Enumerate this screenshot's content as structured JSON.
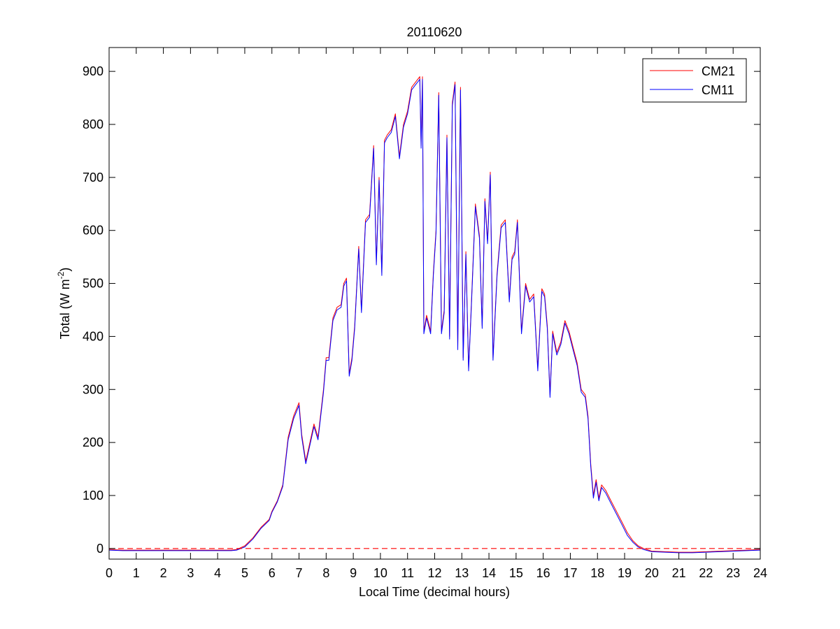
{
  "chart_data": {
    "type": "line",
    "title": "20110620",
    "xlabel": "Local Time (decimal hours)",
    "ylabel": {
      "base": "Total (W m",
      "superscript": "-2",
      "close": ")"
    },
    "xlim": [
      0,
      24
    ],
    "ylim": [
      -20,
      945
    ],
    "xticks": [
      0,
      1,
      2,
      3,
      4,
      5,
      6,
      7,
      8,
      9,
      10,
      11,
      12,
      13,
      14,
      15,
      16,
      17,
      18,
      19,
      20,
      21,
      22,
      23,
      24
    ],
    "yticks": [
      0,
      100,
      200,
      300,
      400,
      500,
      600,
      700,
      800,
      900
    ],
    "grid": false,
    "legend_position": "top-right",
    "reference_line": {
      "y": 0,
      "style": "dashed",
      "color": "#ff0000"
    },
    "series": [
      {
        "name": "CM21",
        "color": "#ff0000",
        "x": [
          0,
          0.5,
          1,
          1.5,
          2,
          2.5,
          3,
          3.5,
          4,
          4.5,
          4.7,
          5,
          5.3,
          5.6,
          5.9,
          6,
          6.2,
          6.4,
          6.6,
          6.8,
          7,
          7.1,
          7.25,
          7.4,
          7.55,
          7.7,
          7.8,
          7.9,
          8,
          8.1,
          8.25,
          8.4,
          8.55,
          8.65,
          8.75,
          8.85,
          8.95,
          9.05,
          9.2,
          9.3,
          9.45,
          9.6,
          9.75,
          9.85,
          9.95,
          10.05,
          10.15,
          10.25,
          10.4,
          10.55,
          10.7,
          10.85,
          11,
          11.15,
          11.3,
          11.45,
          11.5,
          11.55,
          11.6,
          11.7,
          11.85,
          11.95,
          12.05,
          12.15,
          12.25,
          12.35,
          12.45,
          12.55,
          12.65,
          12.75,
          12.85,
          12.95,
          13.05,
          13.15,
          13.25,
          13.35,
          13.5,
          13.65,
          13.75,
          13.85,
          13.95,
          14.05,
          14.15,
          14.3,
          14.45,
          14.6,
          14.75,
          14.85,
          14.95,
          15.05,
          15.2,
          15.35,
          15.5,
          15.65,
          15.8,
          15.95,
          16.05,
          16.15,
          16.25,
          16.35,
          16.5,
          16.65,
          16.8,
          16.95,
          17.1,
          17.25,
          17.4,
          17.55,
          17.65,
          17.75,
          17.85,
          17.95,
          18.05,
          18.15,
          18.3,
          18.5,
          18.7,
          18.9,
          19.1,
          19.3,
          19.5,
          19.7,
          20,
          20.5,
          21,
          21.5,
          22,
          22.5,
          23,
          23.5,
          24
        ],
        "y": [
          -2,
          -3,
          -3,
          -3,
          -3,
          -3,
          -3,
          -3,
          -3,
          -3,
          -2,
          5,
          20,
          40,
          55,
          70,
          90,
          120,
          210,
          250,
          275,
          215,
          165,
          200,
          235,
          210,
          255,
          300,
          360,
          360,
          435,
          455,
          460,
          500,
          510,
          330,
          360,
          420,
          570,
          450,
          620,
          630,
          760,
          540,
          700,
          520,
          770,
          780,
          790,
          820,
          740,
          800,
          825,
          870,
          880,
          890,
          760,
          890,
          410,
          440,
          410,
          520,
          600,
          860,
          410,
          450,
          780,
          400,
          840,
          880,
          380,
          870,
          360,
          560,
          340,
          460,
          650,
          590,
          420,
          660,
          580,
          710,
          360,
          520,
          610,
          620,
          470,
          550,
          560,
          620,
          410,
          500,
          470,
          480,
          340,
          490,
          480,
          420,
          290,
          410,
          370,
          390,
          430,
          410,
          380,
          350,
          300,
          290,
          250,
          160,
          100,
          130,
          95,
          120,
          110,
          90,
          70,
          50,
          30,
          15,
          5,
          0,
          -5,
          -6,
          -7,
          -7,
          -6,
          -5,
          -4,
          -3,
          -2
        ]
      },
      {
        "name": "CM11",
        "color": "#0000ff",
        "x": [
          0,
          0.5,
          1,
          1.5,
          2,
          2.5,
          3,
          3.5,
          4,
          4.5,
          4.7,
          5,
          5.3,
          5.6,
          5.9,
          6,
          6.2,
          6.4,
          6.6,
          6.8,
          7,
          7.1,
          7.25,
          7.4,
          7.55,
          7.7,
          7.8,
          7.9,
          8,
          8.1,
          8.25,
          8.4,
          8.55,
          8.65,
          8.75,
          8.85,
          8.95,
          9.05,
          9.2,
          9.3,
          9.45,
          9.6,
          9.75,
          9.85,
          9.95,
          10.05,
          10.15,
          10.25,
          10.4,
          10.55,
          10.7,
          10.85,
          11,
          11.15,
          11.3,
          11.45,
          11.5,
          11.55,
          11.6,
          11.7,
          11.85,
          11.95,
          12.05,
          12.15,
          12.25,
          12.35,
          12.45,
          12.55,
          12.65,
          12.75,
          12.85,
          12.95,
          13.05,
          13.15,
          13.25,
          13.35,
          13.5,
          13.65,
          13.75,
          13.85,
          13.95,
          14.05,
          14.15,
          14.3,
          14.45,
          14.6,
          14.75,
          14.85,
          14.95,
          15.05,
          15.2,
          15.35,
          15.5,
          15.65,
          15.8,
          15.95,
          16.05,
          16.15,
          16.25,
          16.35,
          16.5,
          16.65,
          16.8,
          16.95,
          17.1,
          17.25,
          17.4,
          17.55,
          17.65,
          17.75,
          17.85,
          17.95,
          18.05,
          18.15,
          18.3,
          18.5,
          18.7,
          18.9,
          19.1,
          19.3,
          19.5,
          19.7,
          20,
          20.5,
          21,
          21.5,
          22,
          22.5,
          23,
          23.5,
          24
        ],
        "y": [
          -3,
          -4,
          -4,
          -4,
          -4,
          -4,
          -4,
          -4,
          -4,
          -4,
          -3,
          3,
          18,
          38,
          53,
          68,
          88,
          117,
          205,
          245,
          270,
          210,
          160,
          195,
          230,
          205,
          250,
          295,
          355,
          355,
          430,
          450,
          455,
          495,
          505,
          325,
          355,
          415,
          565,
          445,
          615,
          625,
          755,
          535,
          695,
          515,
          765,
          775,
          785,
          815,
          735,
          795,
          820,
          865,
          875,
          885,
          755,
          885,
          405,
          435,
          405,
          515,
          595,
          855,
          405,
          445,
          775,
          395,
          835,
          875,
          375,
          865,
          355,
          555,
          335,
          455,
          645,
          585,
          415,
          655,
          575,
          705,
          355,
          515,
          605,
          615,
          465,
          545,
          555,
          615,
          405,
          495,
          465,
          475,
          335,
          485,
          475,
          415,
          285,
          405,
          365,
          385,
          425,
          405,
          375,
          345,
          295,
          285,
          245,
          155,
          95,
          125,
          90,
          115,
          105,
          85,
          65,
          45,
          25,
          12,
          3,
          -2,
          -6,
          -7,
          -8,
          -8,
          -7,
          -6,
          -5,
          -4,
          -3
        ]
      }
    ]
  }
}
